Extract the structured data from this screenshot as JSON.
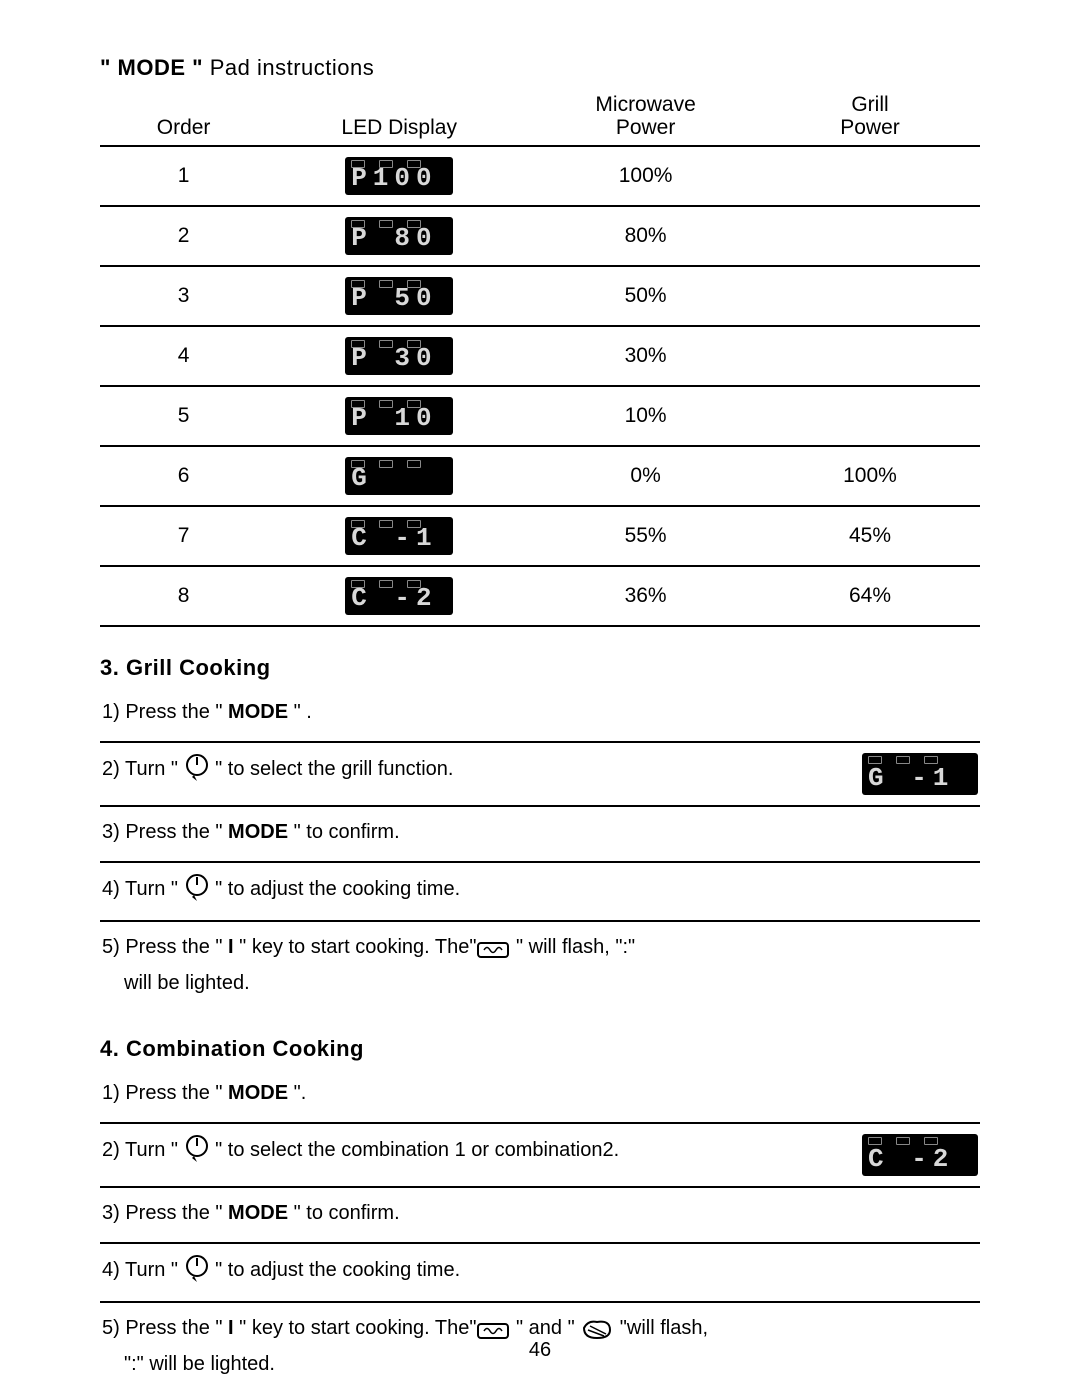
{
  "title": {
    "bold": "\" MODE  \"",
    "rest": "  Pad instructions"
  },
  "table": {
    "headers": {
      "order": "Order",
      "led": "LED Display",
      "microwave1": "Microwave",
      "microwave2": "Power",
      "grill1": "Grill",
      "grill2": "Power"
    },
    "rows": [
      {
        "order": "1",
        "led": "P100",
        "microwave": "100%",
        "grill": ""
      },
      {
        "order": "2",
        "led": "P 80",
        "microwave": "80%",
        "grill": ""
      },
      {
        "order": "3",
        "led": "P 50",
        "microwave": "50%",
        "grill": ""
      },
      {
        "order": "4",
        "led": "P 30",
        "microwave": "30%",
        "grill": ""
      },
      {
        "order": "5",
        "led": "P 10",
        "microwave": "10%",
        "grill": ""
      },
      {
        "order": "6",
        "led": "G   ",
        "microwave": "0%",
        "grill": "100%"
      },
      {
        "order": "7",
        "led": "C -1",
        "microwave": "55%",
        "grill": "45%"
      },
      {
        "order": "8",
        "led": "C -2",
        "microwave": "36%",
        "grill": "64%"
      }
    ]
  },
  "section_grill": {
    "heading": "3. Grill Cooking",
    "step1a": "1) Press the \" ",
    "step1b": "MODE",
    "step1c": " \" .",
    "step2a": "2) Turn \" ",
    "step2b": " \" to select the grill function.",
    "step2_led": "G -1",
    "step3a": "3) Press the \" ",
    "step3b": "MODE",
    "step3c": " \" to confirm.",
    "step4a": "4) Turn \" ",
    "step4b": " \" to adjust the cooking time.",
    "step5a": "5) Press the \" ",
    "step5b": "I",
    "step5c": " \" key to start cooking. The\"",
    "step5d": " \" will flash, \":\"",
    "step5e": "will be lighted."
  },
  "section_combo": {
    "heading": "4. Combination Cooking",
    "step1a": "1) Press the \" ",
    "step1b": "MODE",
    "step1c": "  \".",
    "step2a": "2) Turn \" ",
    "step2b": " \" to select the combination 1 or combination2.",
    "step2_led": "C -2",
    "step3a": "3) Press the \" ",
    "step3b": "MODE",
    "step3c": "  \" to confirm.",
    "step4a": "4) Turn \" ",
    "step4b": " \" to adjust the cooking time.",
    "step5a": "5) Press the \" ",
    "step5b": "I",
    "step5c": "  \" key to start cooking. The\"",
    "step5d": " \" and \"  ",
    "step5e": " \"will flash,",
    "step5f": "\":\"  will be lighted."
  },
  "page_number": "46",
  "colors": {
    "led_bg": "#000000",
    "led_fg": "#d8d8d8",
    "text": "#000000",
    "rule": "#000000"
  }
}
